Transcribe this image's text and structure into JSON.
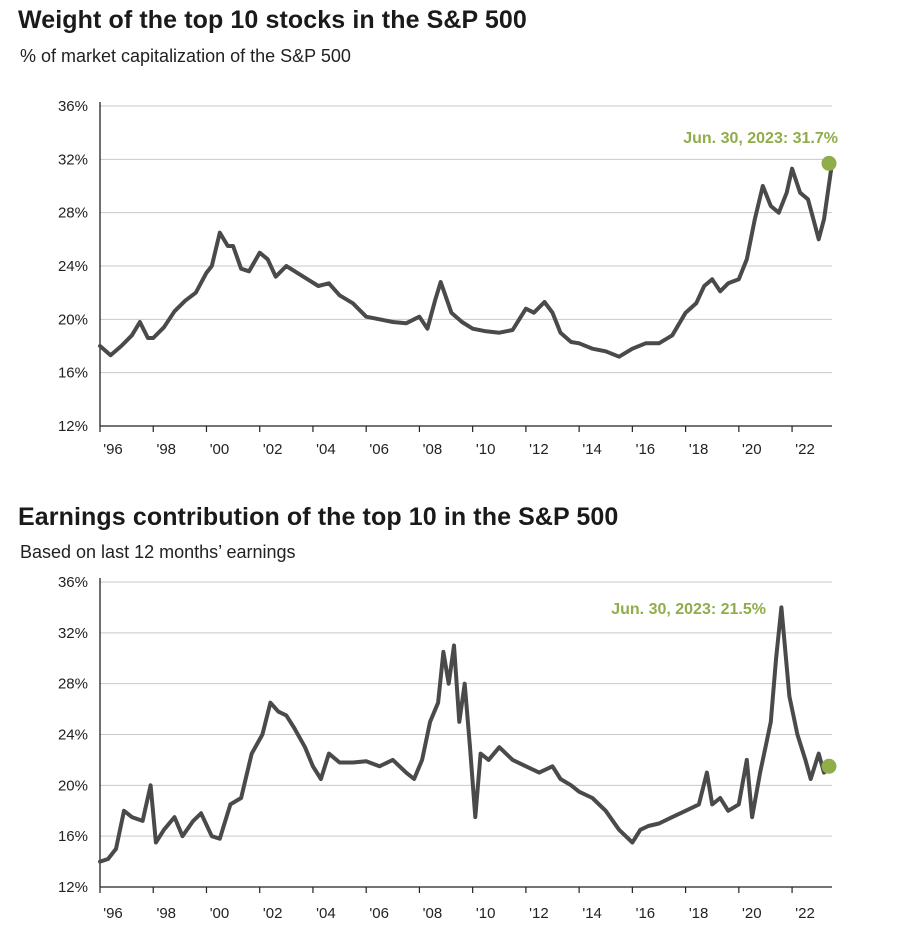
{
  "colors": {
    "line": "#4a4a4a",
    "accent": "#8fad4a",
    "grid": "#c9c9c9",
    "axis": "#222222"
  },
  "chart_data": [
    {
      "type": "line",
      "title": "Weight of the top 10 stocks in the S&P 500",
      "subtitle": "% of market capitalization of the S&P 500",
      "ylim": [
        12,
        36
      ],
      "yticks": [
        "36%",
        "32%",
        "28%",
        "24%",
        "20%",
        "16%",
        "12%"
      ],
      "ytick_values": [
        36,
        32,
        28,
        24,
        20,
        16,
        12
      ],
      "xlim": [
        1996,
        2023.5
      ],
      "xticks": [
        "'96",
        "'98",
        "'00",
        "'02",
        "'04",
        "'06",
        "'08",
        "'10",
        "'12",
        "'14",
        "'16",
        "'18",
        "'20",
        "'22"
      ],
      "xtick_values": [
        1996,
        1998,
        2000,
        2002,
        2004,
        2006,
        2008,
        2010,
        2012,
        2014,
        2016,
        2018,
        2020,
        2022
      ],
      "grid": true,
      "annotation": {
        "text": "Jun. 30, 2023: 31.7%",
        "x": 2023.5,
        "y": 31.7
      },
      "series": [
        {
          "x": [
            1996.0,
            1996.4,
            1996.8,
            1997.2,
            1997.5,
            1997.8,
            1998.0,
            1998.4,
            1998.8,
            1999.2,
            1999.6,
            2000.0,
            2000.2,
            2000.5,
            2000.8,
            2001.0,
            2001.3,
            2001.6,
            2002.0,
            2002.3,
            2002.6,
            2003.0,
            2003.4,
            2003.8,
            2004.2,
            2004.6,
            2005.0,
            2005.5,
            2006.0,
            2006.5,
            2007.0,
            2007.5,
            2008.0,
            2008.3,
            2008.6,
            2008.8,
            2009.2,
            2009.6,
            2010.0,
            2010.5,
            2011.0,
            2011.5,
            2012.0,
            2012.3,
            2012.7,
            2013.0,
            2013.3,
            2013.7,
            2014.0,
            2014.5,
            2015.0,
            2015.5,
            2016.0,
            2016.5,
            2017.0,
            2017.5,
            2018.0,
            2018.4,
            2018.7,
            2019.0,
            2019.3,
            2019.6,
            2020.0,
            2020.3,
            2020.6,
            2020.9,
            2021.2,
            2021.5,
            2021.8,
            2022.0,
            2022.3,
            2022.6,
            2022.8,
            2023.0,
            2023.2,
            2023.5
          ],
          "values": [
            18.0,
            17.3,
            18.0,
            18.8,
            19.8,
            18.6,
            18.6,
            19.4,
            20.6,
            21.4,
            22.0,
            23.5,
            24.0,
            26.5,
            25.5,
            25.5,
            23.8,
            23.6,
            25.0,
            24.5,
            23.2,
            24.0,
            23.5,
            23.0,
            22.5,
            22.7,
            21.8,
            21.2,
            20.2,
            20.0,
            19.8,
            19.7,
            20.2,
            19.3,
            21.5,
            22.8,
            20.5,
            19.8,
            19.3,
            19.1,
            19.0,
            19.2,
            20.8,
            20.5,
            21.3,
            20.5,
            19.0,
            18.3,
            18.2,
            17.8,
            17.6,
            17.2,
            17.8,
            18.2,
            18.2,
            18.8,
            20.5,
            21.2,
            22.5,
            23.0,
            22.1,
            22.7,
            23.0,
            24.5,
            27.5,
            30.0,
            28.5,
            28.0,
            29.5,
            31.3,
            29.5,
            29.0,
            27.5,
            26.0,
            27.5,
            31.7
          ]
        }
      ]
    },
    {
      "type": "line",
      "title": "Earnings contribution of the top 10 in the S&P 500",
      "subtitle": "Based on last 12 months’ earnings",
      "ylim": [
        12,
        36
      ],
      "yticks": [
        "36%",
        "32%",
        "28%",
        "24%",
        "20%",
        "16%",
        "12%"
      ],
      "ytick_values": [
        36,
        32,
        28,
        24,
        20,
        16,
        12
      ],
      "xlim": [
        1996,
        2023.5
      ],
      "xticks": [
        "'96",
        "'98",
        "'00",
        "'02",
        "'04",
        "'06",
        "'08",
        "'10",
        "'12",
        "'14",
        "'16",
        "'18",
        "'20",
        "'22"
      ],
      "xtick_values": [
        1996,
        1998,
        2000,
        2002,
        2004,
        2006,
        2008,
        2010,
        2012,
        2014,
        2016,
        2018,
        2020,
        2022
      ],
      "grid": true,
      "annotation": {
        "text": "Jun. 30, 2023: 21.5%",
        "x": 2023.5,
        "y": 21.5
      },
      "series": [
        {
          "x": [
            1996.0,
            1996.3,
            1996.6,
            1996.9,
            1997.2,
            1997.6,
            1997.9,
            1998.1,
            1998.4,
            1998.8,
            1999.1,
            1999.5,
            1999.8,
            2000.2,
            2000.5,
            2000.9,
            2001.3,
            2001.7,
            2002.1,
            2002.4,
            2002.7,
            2003.0,
            2003.3,
            2003.7,
            2004.0,
            2004.3,
            2004.6,
            2005.0,
            2005.5,
            2006.0,
            2006.5,
            2007.0,
            2007.5,
            2007.8,
            2008.1,
            2008.4,
            2008.7,
            2008.9,
            2009.1,
            2009.3,
            2009.5,
            2009.7,
            2009.9,
            2010.1,
            2010.3,
            2010.6,
            2011.0,
            2011.5,
            2012.0,
            2012.5,
            2013.0,
            2013.3,
            2013.7,
            2014.0,
            2014.5,
            2015.0,
            2015.5,
            2016.0,
            2016.3,
            2016.6,
            2017.0,
            2017.5,
            2018.0,
            2018.5,
            2018.8,
            2019.0,
            2019.3,
            2019.6,
            2020.0,
            2020.3,
            2020.5,
            2020.8,
            2021.0,
            2021.2,
            2021.4,
            2021.6,
            2021.9,
            2022.2,
            2022.5,
            2022.7,
            2023.0,
            2023.2,
            2023.5
          ],
          "values": [
            14.0,
            14.2,
            15.0,
            18.0,
            17.5,
            17.2,
            20.0,
            15.5,
            16.5,
            17.5,
            16.0,
            17.2,
            17.8,
            16.0,
            15.8,
            18.5,
            19.0,
            22.5,
            24.0,
            26.5,
            25.8,
            25.5,
            24.5,
            23.0,
            21.5,
            20.5,
            22.5,
            21.8,
            21.8,
            21.9,
            21.5,
            22.0,
            21.0,
            20.5,
            22.0,
            25.0,
            26.5,
            30.5,
            28.0,
            31.0,
            25.0,
            28.0,
            23.0,
            17.5,
            22.5,
            22.0,
            23.0,
            22.0,
            21.5,
            21.0,
            21.5,
            20.5,
            20.0,
            19.5,
            19.0,
            18.0,
            16.5,
            15.5,
            16.5,
            16.8,
            17.0,
            17.5,
            18.0,
            18.5,
            21.0,
            18.5,
            19.0,
            18.0,
            18.5,
            22.0,
            17.5,
            21.0,
            23.0,
            25.0,
            30.0,
            34.0,
            27.0,
            24.0,
            22.0,
            20.5,
            22.5,
            21.0,
            21.5
          ]
        }
      ]
    }
  ]
}
